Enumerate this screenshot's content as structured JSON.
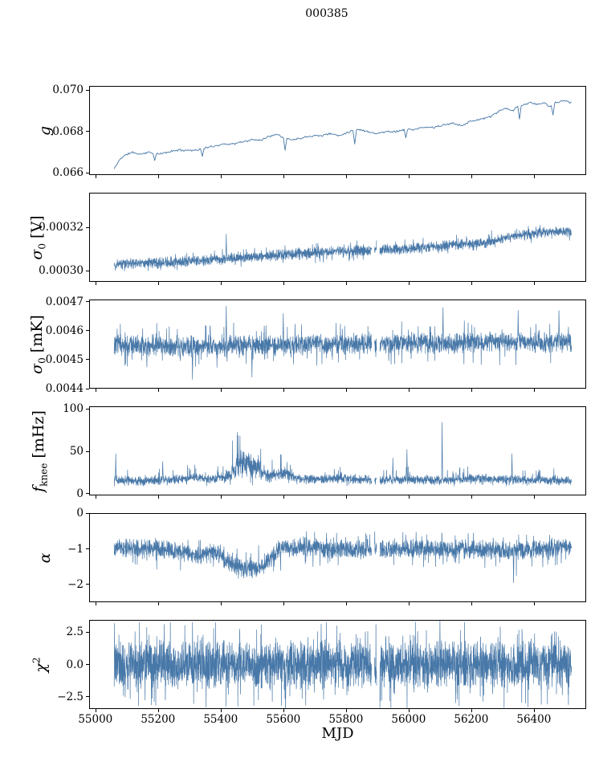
{
  "title": "000385",
  "xlabel": "MJD",
  "accent_color": "#4878a8",
  "spine_color": "#000000",
  "x_axis": {
    "lim": [
      54980,
      56567
    ],
    "ticks": [
      55000,
      55200,
      55400,
      55600,
      55800,
      56000,
      56200,
      56400
    ],
    "tick_labels": [
      "55000",
      "55200",
      "55400",
      "55600",
      "55800",
      "56000",
      "56200",
      "56400"
    ],
    "data_range": [
      55060,
      56520
    ],
    "gaps": [
      [
        55882,
        55891
      ],
      [
        55898,
        55908
      ]
    ]
  },
  "chart_data": [
    {
      "name": "gain",
      "type": "line",
      "style": "line",
      "ylabel": {
        "var": "g",
        "sub": "",
        "sup": "",
        "unit": ""
      },
      "ylim": [
        0.0659,
        0.0702
      ],
      "yticks": [
        [
          0.07,
          "0.070"
        ],
        [
          0.068,
          "0.068"
        ],
        [
          0.066,
          "0.066"
        ]
      ],
      "points": 520,
      "seed": 11,
      "spread": 6e-05,
      "spike_prob": 0,
      "use_gaps": false,
      "trend": [
        [
          55060,
          0.0662
        ],
        [
          55080,
          0.0667
        ],
        [
          55100,
          0.0669
        ],
        [
          55120,
          0.067
        ],
        [
          55140,
          0.0669
        ],
        [
          55170,
          0.067
        ],
        [
          55200,
          0.0669
        ],
        [
          55230,
          0.067
        ],
        [
          55260,
          0.0671
        ],
        [
          55290,
          0.0671
        ],
        [
          55320,
          0.0671
        ],
        [
          55350,
          0.0672
        ],
        [
          55380,
          0.0673
        ],
        [
          55410,
          0.0674
        ],
        [
          55440,
          0.0674
        ],
        [
          55470,
          0.0675
        ],
        [
          55500,
          0.0676
        ],
        [
          55530,
          0.0676
        ],
        [
          55560,
          0.0678
        ],
        [
          55580,
          0.0679
        ],
        [
          55600,
          0.0677
        ],
        [
          55630,
          0.0676
        ],
        [
          55660,
          0.0677
        ],
        [
          55690,
          0.0678
        ],
        [
          55720,
          0.0678
        ],
        [
          55750,
          0.0679
        ],
        [
          55780,
          0.0678
        ],
        [
          55810,
          0.068
        ],
        [
          55840,
          0.0681
        ],
        [
          55870,
          0.068
        ],
        [
          55900,
          0.0679
        ],
        [
          55930,
          0.068
        ],
        [
          55960,
          0.068
        ],
        [
          55990,
          0.0681
        ],
        [
          56020,
          0.0681
        ],
        [
          56050,
          0.0682
        ],
        [
          56080,
          0.0682
        ],
        [
          56110,
          0.0683
        ],
        [
          56140,
          0.0684
        ],
        [
          56170,
          0.0683
        ],
        [
          56200,
          0.0685
        ],
        [
          56230,
          0.0686
        ],
        [
          56260,
          0.0687
        ],
        [
          56290,
          0.069
        ],
        [
          56310,
          0.0691
        ],
        [
          56330,
          0.069
        ],
        [
          56350,
          0.0692
        ],
        [
          56370,
          0.0693
        ],
        [
          56390,
          0.0694
        ],
        [
          56410,
          0.0693
        ],
        [
          56430,
          0.0694
        ],
        [
          56450,
          0.0692
        ],
        [
          56470,
          0.0694
        ],
        [
          56490,
          0.0695
        ],
        [
          56520,
          0.0694
        ]
      ],
      "spikes": [
        [
          55188,
          0.0666
        ],
        [
          55340,
          0.0668
        ],
        [
          55607,
          0.0671
        ],
        [
          55828,
          0.0674
        ],
        [
          55990,
          0.0677
        ],
        [
          56355,
          0.0686
        ],
        [
          56460,
          0.0688
        ]
      ]
    },
    {
      "name": "sigma0_volts",
      "type": "line",
      "style": "band",
      "ylabel": {
        "var": "σ",
        "sub": "0",
        "sup": "",
        "unit": " [V]"
      },
      "ylim": [
        0.000295,
        0.000336
      ],
      "yticks": [
        [
          0.00032,
          "0.00032"
        ],
        [
          0.0003,
          "0.00030"
        ]
      ],
      "points": 2600,
      "seed": 22,
      "spread": 2.8e-06,
      "spike_prob": 0.04,
      "use_gaps": true,
      "trend": [
        [
          55060,
          0.000303
        ],
        [
          55150,
          0.0003035
        ],
        [
          55250,
          0.000304
        ],
        [
          55350,
          0.000305
        ],
        [
          55450,
          0.000306
        ],
        [
          55550,
          0.000307
        ],
        [
          55650,
          0.000308
        ],
        [
          55750,
          0.000309
        ],
        [
          55850,
          0.0003095
        ],
        [
          55950,
          0.00031
        ],
        [
          56050,
          0.000311
        ],
        [
          56150,
          0.000312
        ],
        [
          56250,
          0.000313
        ],
        [
          56330,
          0.000316
        ],
        [
          56400,
          0.000317
        ],
        [
          56450,
          0.000318
        ],
        [
          56520,
          0.000318
        ]
      ],
      "upper": [
        [
          55060,
          0.000307
        ],
        [
          55400,
          0.00031
        ],
        [
          55800,
          0.000314
        ],
        [
          56100,
          0.000316
        ],
        [
          56300,
          0.00032
        ],
        [
          56520,
          0.000322
        ]
      ],
      "lower": [
        [
          55060,
          0.000299
        ],
        [
          55500,
          0.000302
        ],
        [
          56000,
          0.000306
        ],
        [
          56520,
          0.000314
        ]
      ],
      "spikes": [
        [
          55418,
          0.000317
        ]
      ]
    },
    {
      "name": "sigma0_millikelvin",
      "type": "line",
      "style": "band",
      "ylabel": {
        "var": "σ",
        "sub": "0",
        "sup": "",
        "unit": " [mK]"
      },
      "ylim": [
        0.0044,
        0.004708
      ],
      "yticks": [
        [
          0.0047,
          "0.0047"
        ],
        [
          0.0046,
          "0.0046"
        ],
        [
          0.0045,
          "0.0045"
        ],
        [
          0.0044,
          "0.0044"
        ]
      ],
      "points": 2600,
      "seed": 33,
      "spread": 4e-05,
      "spike_prob": 0.05,
      "use_gaps": true,
      "trend": [
        [
          55060,
          0.00455
        ],
        [
          55200,
          0.004548
        ],
        [
          55300,
          0.004545
        ],
        [
          55400,
          0.00455
        ],
        [
          55500,
          0.004548
        ],
        [
          55600,
          0.004552
        ],
        [
          55700,
          0.004552
        ],
        [
          55800,
          0.004555
        ],
        [
          55900,
          0.004555
        ],
        [
          56000,
          0.004558
        ],
        [
          56100,
          0.004557
        ],
        [
          56200,
          0.00456
        ],
        [
          56300,
          0.004562
        ],
        [
          56400,
          0.004558
        ],
        [
          56520,
          0.00456
        ]
      ],
      "upper": [
        [
          55060,
          0.004625
        ],
        [
          55400,
          0.00463
        ],
        [
          55800,
          0.00463
        ],
        [
          56200,
          0.004638
        ],
        [
          56520,
          0.004635
        ]
      ],
      "lower": [
        [
          55060,
          0.004475
        ],
        [
          55400,
          0.00447
        ],
        [
          55800,
          0.00448
        ],
        [
          56200,
          0.004482
        ],
        [
          56520,
          0.00448
        ]
      ],
      "spikes": [
        [
          55418,
          0.004685
        ],
        [
          55310,
          0.004432
        ],
        [
          55500,
          0.00444
        ],
        [
          55600,
          0.00466
        ],
        [
          56110,
          0.00468
        ],
        [
          56350,
          0.00467
        ],
        [
          56480,
          0.00467
        ]
      ]
    },
    {
      "name": "fknee",
      "type": "line",
      "style": "band",
      "ylabel": {
        "var": "f",
        "sub": "knee",
        "sup": "",
        "unit": " [mHz]"
      },
      "ylim": [
        -2,
        103
      ],
      "yticks": [
        [
          100,
          "100"
        ],
        [
          50,
          "50"
        ],
        [
          0,
          "0"
        ]
      ],
      "points": 2600,
      "seed": 44,
      "spread": [
        [
          55060,
          6
        ],
        [
          55400,
          6
        ],
        [
          55430,
          10
        ],
        [
          55460,
          18
        ],
        [
          55500,
          16
        ],
        [
          55530,
          12
        ],
        [
          55560,
          8
        ],
        [
          55620,
          9
        ],
        [
          55650,
          6
        ],
        [
          56520,
          6
        ]
      ],
      "spike_prob": 0.06,
      "use_gaps": true,
      "trend": [
        [
          55060,
          16
        ],
        [
          55150,
          15
        ],
        [
          55250,
          17
        ],
        [
          55320,
          19
        ],
        [
          55380,
          17
        ],
        [
          55430,
          22
        ],
        [
          55460,
          38
        ],
        [
          55490,
          36
        ],
        [
          55520,
          28
        ],
        [
          55550,
          20
        ],
        [
          55580,
          23
        ],
        [
          55610,
          25
        ],
        [
          55640,
          18
        ],
        [
          55700,
          17
        ],
        [
          55800,
          18
        ],
        [
          55900,
          16
        ],
        [
          56000,
          17
        ],
        [
          56100,
          16
        ],
        [
          56200,
          18
        ],
        [
          56300,
          17
        ],
        [
          56400,
          16
        ],
        [
          56520,
          15
        ]
      ],
      "upper": [
        [
          55060,
          28
        ],
        [
          55250,
          30
        ],
        [
          55320,
          36
        ],
        [
          55380,
          32
        ],
        [
          55430,
          55
        ],
        [
          55460,
          85
        ],
        [
          55500,
          78
        ],
        [
          55530,
          60
        ],
        [
          55560,
          45
        ],
        [
          55590,
          50
        ],
        [
          55620,
          48
        ],
        [
          55650,
          34
        ],
        [
          55800,
          32
        ],
        [
          55900,
          30
        ],
        [
          56000,
          32
        ],
        [
          56100,
          30
        ],
        [
          56200,
          33
        ],
        [
          56300,
          31
        ],
        [
          56400,
          31
        ],
        [
          56520,
          29
        ]
      ],
      "lower": [
        [
          55060,
          9
        ],
        [
          56520,
          9
        ]
      ],
      "spikes": [
        [
          55065,
          47
        ],
        [
          55215,
          38
        ],
        [
          55905,
          78
        ],
        [
          55950,
          42
        ],
        [
          55995,
          52
        ],
        [
          56107,
          84
        ],
        [
          56330,
          47
        ]
      ]
    },
    {
      "name": "alpha",
      "type": "line",
      "style": "band",
      "ylabel": {
        "var": "α",
        "sub": "",
        "sup": "",
        "unit": ""
      },
      "ylim": [
        -2.5,
        0.005
      ],
      "yticks": [
        [
          0,
          "0"
        ],
        [
          -1,
          "−1"
        ],
        [
          -2,
          "−2"
        ]
      ],
      "points": 2600,
      "seed": 55,
      "spread": 0.3,
      "spike_prob": 0.05,
      "use_gaps": true,
      "trend": [
        [
          55060,
          -0.95
        ],
        [
          55150,
          -1.0
        ],
        [
          55250,
          -1.05
        ],
        [
          55300,
          -1.15
        ],
        [
          55330,
          -1.2
        ],
        [
          55360,
          -1.1
        ],
        [
          55390,
          -1.12
        ],
        [
          55420,
          -1.35
        ],
        [
          55450,
          -1.5
        ],
        [
          55480,
          -1.55
        ],
        [
          55510,
          -1.55
        ],
        [
          55540,
          -1.45
        ],
        [
          55570,
          -1.15
        ],
        [
          55600,
          -0.95
        ],
        [
          55630,
          -1.0
        ],
        [
          55660,
          -0.9
        ],
        [
          55700,
          -0.98
        ],
        [
          55800,
          -1.02
        ],
        [
          55900,
          -1.0
        ],
        [
          56000,
          -1.0
        ],
        [
          56100,
          -1.0
        ],
        [
          56200,
          -1.02
        ],
        [
          56300,
          -1.05
        ],
        [
          56400,
          -1.0
        ],
        [
          56520,
          -0.95
        ]
      ],
      "upper": [
        [
          55060,
          -0.55
        ],
        [
          55400,
          -0.8
        ],
        [
          55500,
          -1.0
        ],
        [
          55600,
          -0.5
        ],
        [
          56520,
          -0.5
        ]
      ],
      "lower": [
        [
          55060,
          -1.55
        ],
        [
          55400,
          -1.7
        ],
        [
          55450,
          -2.1
        ],
        [
          55500,
          -2.15
        ],
        [
          55540,
          -2.0
        ],
        [
          55570,
          -1.7
        ],
        [
          55650,
          -1.5
        ],
        [
          56300,
          -1.55
        ],
        [
          56330,
          -1.95
        ],
        [
          56360,
          -1.55
        ],
        [
          56520,
          -1.5
        ]
      ],
      "spikes": [
        [
          56335,
          -1.95
        ]
      ]
    },
    {
      "name": "chi2",
      "type": "line",
      "style": "band",
      "ylabel": {
        "var": "χ",
        "sub": "",
        "sup": "2",
        "unit": ""
      },
      "ylim": [
        -3.45,
        3.45
      ],
      "yticks": [
        [
          2.5,
          "2.5"
        ],
        [
          0,
          "0.0"
        ],
        [
          -2.5,
          "−2.5"
        ]
      ],
      "points": 3200,
      "seed": 66,
      "spread": 2.0,
      "spike_prob": 0.06,
      "use_gaps": true,
      "trend": [
        [
          55060,
          0
        ],
        [
          56520,
          0
        ]
      ],
      "upper": [
        [
          55060,
          3.3
        ],
        [
          56520,
          3.3
        ]
      ],
      "lower": [
        [
          55060,
          -3.4
        ],
        [
          56520,
          -3.4
        ]
      ],
      "spikes": [
        [
          55607,
          -3.6
        ],
        [
          56100,
          3.4
        ]
      ]
    }
  ]
}
